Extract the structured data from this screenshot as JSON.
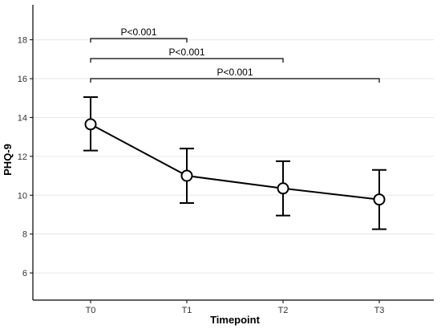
{
  "chart_data": {
    "type": "line",
    "title": "",
    "xlabel": "Timepoint",
    "ylabel": "PHQ-9",
    "categories": [
      "T0",
      "T1",
      "T2",
      "T3"
    ],
    "ylim": [
      4.6,
      19.8
    ],
    "yticks": [
      6,
      8,
      10,
      12,
      14,
      16,
      18
    ],
    "grid": true,
    "series": [
      {
        "values": [
          13.65,
          11.0,
          10.35,
          9.78
        ],
        "lower": [
          12.3,
          9.6,
          8.95,
          8.25
        ],
        "upper": [
          15.05,
          12.4,
          11.75,
          11.3
        ]
      }
    ],
    "significance": [
      {
        "from": "T0",
        "to": "T1",
        "label": "P<0.001"
      },
      {
        "from": "T0",
        "to": "T2",
        "label": "P<0.001"
      },
      {
        "from": "T0",
        "to": "T3",
        "label": "P<0.001"
      }
    ]
  }
}
